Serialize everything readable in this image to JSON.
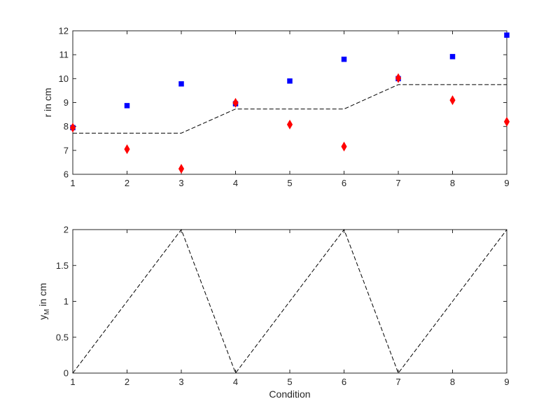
{
  "chart_data": [
    {
      "type": "line",
      "xlim": [
        1,
        9
      ],
      "ylim": [
        6,
        12
      ],
      "xticks": [
        "1",
        "2",
        "3",
        "4",
        "5",
        "6",
        "7",
        "8",
        "9"
      ],
      "yticks": [
        "6",
        "7",
        "8",
        "9",
        "10",
        "11",
        "12"
      ],
      "xlabel": "",
      "ylabel": "r in cm",
      "grid": false,
      "series": [
        {
          "marker": "square",
          "color": "#0000ff",
          "line": "none",
          "x": [
            1,
            2,
            3,
            4,
            5,
            6,
            7,
            8,
            9
          ],
          "y": [
            7.95,
            8.87,
            9.78,
            8.95,
            9.9,
            10.81,
            10.0,
            10.92,
            11.82
          ]
        },
        {
          "marker": "diamond",
          "color": "#ff0000",
          "line": "none",
          "x": [
            1,
            2,
            3,
            4,
            5,
            6,
            7,
            8,
            9
          ],
          "y": [
            7.95,
            7.05,
            6.23,
            8.99,
            8.08,
            7.16,
            10.02,
            9.1,
            8.2
          ]
        },
        {
          "marker": "none",
          "color": "#000000",
          "line": "dashed",
          "x": [
            1,
            3,
            4,
            6,
            7,
            9
          ],
          "y": [
            7.72,
            7.72,
            8.73,
            8.73,
            9.75,
            9.75
          ]
        }
      ]
    },
    {
      "type": "line",
      "xlim": [
        1,
        9
      ],
      "ylim": [
        0,
        2
      ],
      "xticks": [
        "1",
        "2",
        "3",
        "4",
        "5",
        "6",
        "7",
        "8",
        "9"
      ],
      "yticks": [
        "0",
        "0.5",
        "1",
        "1.5",
        "2"
      ],
      "xlabel": "Condition",
      "ylabel": "y",
      "ylabel_subscript": "M",
      "ylabel_suffix": " in cm",
      "grid": false,
      "series": [
        {
          "marker": "none",
          "color": "#000000",
          "line": "dashed",
          "x": [
            1,
            2,
            3,
            4,
            5,
            6,
            7,
            8,
            9
          ],
          "y": [
            0,
            1,
            2,
            0,
            1,
            2,
            0,
            1,
            2
          ]
        }
      ]
    }
  ]
}
